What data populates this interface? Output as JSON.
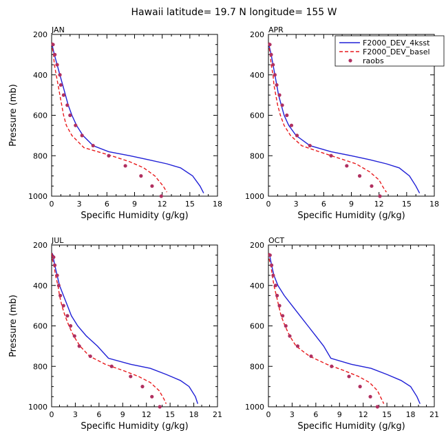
{
  "figure": {
    "title": "Hawaii  latitude= 19.7 N longitude= 155 W"
  },
  "legend": {
    "location": "top-right of APR panel",
    "entries": [
      {
        "label": "F2000_DEV_4ksst",
        "color": "#1f1fd6",
        "style": "solid"
      },
      {
        "label": "F2000_DEV_basel",
        "color": "#e8191b",
        "style": "dashed"
      },
      {
        "label": "raobs",
        "color": "#b03060",
        "style": "points"
      }
    ]
  },
  "chart_data": [
    {
      "type": "line",
      "title": "JAN",
      "xlabel": "Specific Humidity (g/kg)",
      "ylabel": "Pressure (mb)",
      "xlim": [
        0,
        18
      ],
      "ylim": [
        1000,
        200
      ],
      "y_inverted": true,
      "xticks": [
        0,
        3,
        6,
        9,
        12,
        15,
        18
      ],
      "yticks": [
        200,
        400,
        600,
        800,
        1000
      ],
      "series": [
        {
          "name": "F2000_DEV_4ksst",
          "color": "#1f1fd6",
          "style": "solid",
          "points": [
            [
              0.05,
              240
            ],
            [
              0.1,
              260
            ],
            [
              0.3,
              300
            ],
            [
              0.6,
              350
            ],
            [
              0.9,
              400
            ],
            [
              1.2,
              450
            ],
            [
              1.5,
              500
            ],
            [
              1.8,
              550
            ],
            [
              2.2,
              600
            ],
            [
              2.7,
              650
            ],
            [
              3.4,
              700
            ],
            [
              4.5,
              750
            ],
            [
              6.2,
              780
            ],
            [
              8.5,
              800
            ],
            [
              10.5,
              820
            ],
            [
              12.5,
              840
            ],
            [
              14,
              860
            ],
            [
              15.3,
              900
            ],
            [
              16.1,
              950
            ],
            [
              16.5,
              985
            ]
          ]
        },
        {
          "name": "F2000_DEV_basel",
          "color": "#e8191b",
          "style": "dashed",
          "points": [
            [
              0.05,
              240
            ],
            [
              0.1,
              270
            ],
            [
              0.2,
              300
            ],
            [
              0.3,
              350
            ],
            [
              0.5,
              400
            ],
            [
              0.7,
              450
            ],
            [
              0.9,
              500
            ],
            [
              1.1,
              550
            ],
            [
              1.3,
              600
            ],
            [
              1.6,
              650
            ],
            [
              2.2,
              700
            ],
            [
              3.5,
              760
            ],
            [
              6.5,
              800
            ],
            [
              8.5,
              830
            ],
            [
              10,
              860
            ],
            [
              11.2,
              900
            ],
            [
              12.1,
              950
            ],
            [
              12.5,
              980
            ]
          ]
        },
        {
          "name": "raobs",
          "color": "#b03060",
          "style": "points",
          "points": [
            [
              0.15,
              250
            ],
            [
              0.35,
              300
            ],
            [
              0.6,
              350
            ],
            [
              0.9,
              400
            ],
            [
              1.0,
              450
            ],
            [
              1.3,
              500
            ],
            [
              1.7,
              550
            ],
            [
              2.0,
              600
            ],
            [
              2.6,
              650
            ],
            [
              3.3,
              700
            ],
            [
              4.5,
              750
            ],
            [
              6.2,
              800
            ],
            [
              8.0,
              850
            ],
            [
              9.7,
              900
            ],
            [
              10.9,
              950
            ],
            [
              11.9,
              1000
            ]
          ]
        }
      ]
    },
    {
      "type": "line",
      "title": "APR",
      "xlabel": "Specific Humidity (g/kg)",
      "ylabel": "",
      "xlim": [
        0,
        18
      ],
      "ylim": [
        1000,
        200
      ],
      "y_inverted": true,
      "xticks": [
        0,
        3,
        6,
        9,
        12,
        15,
        18
      ],
      "yticks": [
        200,
        400,
        600,
        800,
        1000
      ],
      "series": [
        {
          "name": "F2000_DEV_4ksst",
          "color": "#1f1fd6",
          "style": "solid",
          "points": [
            [
              0.05,
              240
            ],
            [
              0.1,
              260
            ],
            [
              0.3,
              300
            ],
            [
              0.5,
              350
            ],
            [
              0.7,
              400
            ],
            [
              0.9,
              450
            ],
            [
              1.1,
              500
            ],
            [
              1.4,
              550
            ],
            [
              1.7,
              600
            ],
            [
              2.2,
              650
            ],
            [
              3.0,
              700
            ],
            [
              4.5,
              750
            ],
            [
              6.8,
              780
            ],
            [
              9,
              800
            ],
            [
              11,
              820
            ],
            [
              12.8,
              840
            ],
            [
              14.2,
              860
            ],
            [
              15.3,
              900
            ],
            [
              16.0,
              950
            ],
            [
              16.4,
              985
            ]
          ]
        },
        {
          "name": "F2000_DEV_basel",
          "color": "#e8191b",
          "style": "dashed",
          "points": [
            [
              0.05,
              240
            ],
            [
              0.1,
              270
            ],
            [
              0.2,
              300
            ],
            [
              0.3,
              350
            ],
            [
              0.5,
              400
            ],
            [
              0.6,
              450
            ],
            [
              0.8,
              500
            ],
            [
              1.0,
              550
            ],
            [
              1.3,
              600
            ],
            [
              1.7,
              650
            ],
            [
              2.4,
              700
            ],
            [
              3.6,
              750
            ],
            [
              5.5,
              780
            ],
            [
              7.5,
              810
            ],
            [
              9.5,
              840
            ],
            [
              11,
              880
            ],
            [
              12,
              920
            ],
            [
              12.5,
              960
            ],
            [
              12.8,
              980
            ]
          ]
        },
        {
          "name": "raobs",
          "color": "#b03060",
          "style": "points",
          "points": [
            [
              0.15,
              250
            ],
            [
              0.3,
              300
            ],
            [
              0.5,
              350
            ],
            [
              0.7,
              400
            ],
            [
              0.9,
              450
            ],
            [
              1.2,
              500
            ],
            [
              1.5,
              550
            ],
            [
              2.0,
              600
            ],
            [
              2.5,
              650
            ],
            [
              3.1,
              700
            ],
            [
              4.5,
              750
            ],
            [
              6.8,
              800
            ],
            [
              8.5,
              850
            ],
            [
              9.9,
              900
            ],
            [
              11.2,
              950
            ],
            [
              12.1,
              1000
            ]
          ]
        }
      ]
    },
    {
      "type": "line",
      "title": "JUL",
      "xlabel": "Specific Humidity (g/kg)",
      "ylabel": "Pressure (mb)",
      "xlim": [
        0,
        21
      ],
      "ylim": [
        1000,
        200
      ],
      "y_inverted": true,
      "xticks": [
        0,
        3,
        6,
        9,
        12,
        15,
        18,
        21
      ],
      "yticks": [
        200,
        400,
        600,
        800,
        1000
      ],
      "series": [
        {
          "name": "F2000_DEV_4ksst",
          "color": "#1f1fd6",
          "style": "solid",
          "points": [
            [
              0.1,
              240
            ],
            [
              0.2,
              260
            ],
            [
              0.4,
              300
            ],
            [
              0.7,
              350
            ],
            [
              1.0,
              400
            ],
            [
              1.5,
              450
            ],
            [
              2.0,
              500
            ],
            [
              2.5,
              550
            ],
            [
              3.3,
              600
            ],
            [
              4.4,
              650
            ],
            [
              5.8,
              700
            ],
            [
              7.2,
              760
            ],
            [
              10,
              790
            ],
            [
              12.5,
              810
            ],
            [
              14.5,
              840
            ],
            [
              16.3,
              870
            ],
            [
              17.4,
              900
            ],
            [
              18.2,
              950
            ],
            [
              18.5,
              985
            ]
          ]
        },
        {
          "name": "F2000_DEV_basel",
          "color": "#e8191b",
          "style": "dashed",
          "points": [
            [
              0.05,
              240
            ],
            [
              0.1,
              270
            ],
            [
              0.3,
              300
            ],
            [
              0.5,
              350
            ],
            [
              0.8,
              400
            ],
            [
              1.0,
              450
            ],
            [
              1.3,
              500
            ],
            [
              1.7,
              550
            ],
            [
              2.2,
              600
            ],
            [
              2.8,
              650
            ],
            [
              3.6,
              700
            ],
            [
              4.8,
              750
            ],
            [
              6.8,
              790
            ],
            [
              9,
              820
            ],
            [
              11,
              850
            ],
            [
              12.5,
              880
            ],
            [
              13.6,
              920
            ],
            [
              14.2,
              960
            ],
            [
              14.5,
              985
            ]
          ]
        },
        {
          "name": "raobs",
          "color": "#b03060",
          "style": "points",
          "points": [
            [
              0.25,
              260
            ],
            [
              0.4,
              300
            ],
            [
              0.7,
              350
            ],
            [
              0.9,
              400
            ],
            [
              1.1,
              450
            ],
            [
              1.5,
              500
            ],
            [
              2.0,
              550
            ],
            [
              2.4,
              600
            ],
            [
              2.9,
              650
            ],
            [
              3.5,
              700
            ],
            [
              4.9,
              750
            ],
            [
              7.6,
              800
            ],
            [
              10,
              850
            ],
            [
              11.5,
              900
            ],
            [
              12.7,
              950
            ],
            [
              13.7,
              1000
            ]
          ]
        }
      ]
    },
    {
      "type": "line",
      "title": "OCT",
      "xlabel": "Specific Humidity (g/kg)",
      "ylabel": "",
      "xlim": [
        0,
        21
      ],
      "ylim": [
        1000,
        200
      ],
      "y_inverted": true,
      "xticks": [
        0,
        3,
        6,
        9,
        12,
        15,
        18,
        21
      ],
      "yticks": [
        200,
        400,
        600,
        800,
        1000
      ],
      "series": [
        {
          "name": "F2000_DEV_4ksst",
          "color": "#1f1fd6",
          "style": "solid",
          "points": [
            [
              0.1,
              240
            ],
            [
              0.2,
              260
            ],
            [
              0.4,
              300
            ],
            [
              0.7,
              350
            ],
            [
              1.2,
              400
            ],
            [
              2.0,
              450
            ],
            [
              3.0,
              500
            ],
            [
              4.0,
              550
            ],
            [
              5.0,
              600
            ],
            [
              6.0,
              650
            ],
            [
              7.0,
              700
            ],
            [
              7.9,
              760
            ],
            [
              10.5,
              790
            ],
            [
              13,
              810
            ],
            [
              15,
              840
            ],
            [
              16.8,
              870
            ],
            [
              18,
              900
            ],
            [
              18.8,
              950
            ],
            [
              19.2,
              985
            ]
          ]
        },
        {
          "name": "F2000_DEV_basel",
          "color": "#e8191b",
          "style": "dashed",
          "points": [
            [
              0.05,
              240
            ],
            [
              0.1,
              270
            ],
            [
              0.3,
              300
            ],
            [
              0.5,
              350
            ],
            [
              0.7,
              400
            ],
            [
              1.0,
              450
            ],
            [
              1.3,
              500
            ],
            [
              1.6,
              550
            ],
            [
              2.1,
              600
            ],
            [
              2.7,
              650
            ],
            [
              3.5,
              700
            ],
            [
              5.2,
              750
            ],
            [
              7.4,
              790
            ],
            [
              9.5,
              820
            ],
            [
              11.4,
              850
            ],
            [
              12.8,
              880
            ],
            [
              13.8,
              920
            ],
            [
              14.3,
              960
            ],
            [
              14.6,
              985
            ]
          ]
        },
        {
          "name": "raobs",
          "color": "#b03060",
          "style": "points",
          "points": [
            [
              0.2,
              250
            ],
            [
              0.4,
              300
            ],
            [
              0.6,
              350
            ],
            [
              0.9,
              400
            ],
            [
              1.1,
              450
            ],
            [
              1.4,
              500
            ],
            [
              1.8,
              550
            ],
            [
              2.2,
              600
            ],
            [
              2.7,
              650
            ],
            [
              3.7,
              700
            ],
            [
              5.4,
              750
            ],
            [
              8.0,
              800
            ],
            [
              10.2,
              850
            ],
            [
              11.6,
              900
            ],
            [
              12.9,
              950
            ],
            [
              13.8,
              1000
            ]
          ]
        }
      ]
    }
  ]
}
